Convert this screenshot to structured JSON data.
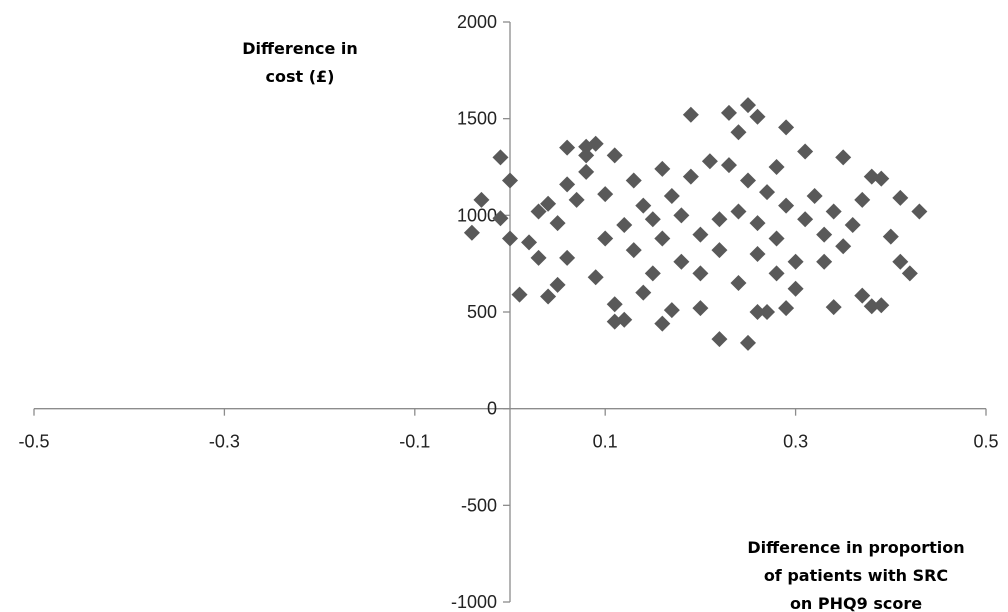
{
  "chart_data": {
    "type": "scatter",
    "xlabel": [
      "Difference in proportion",
      "of patients with SRC",
      "on PHQ9 score"
    ],
    "ylabel": [
      "Difference in",
      "cost (£)"
    ],
    "xlim": [
      -0.5,
      0.5
    ],
    "ylim": [
      -1000,
      2000
    ],
    "x_ticks": [
      "-0.5",
      "-0.3",
      "-0.1",
      "0.1",
      "0.3",
      "0.5"
    ],
    "y_ticks": [
      "2000",
      "1500",
      "1000",
      "500",
      "0",
      "-500",
      "-1000"
    ],
    "marker": "diamond",
    "marker_color": "#595959",
    "grid": false,
    "legend": "none",
    "series": [
      {
        "points": [
          [
            -0.01,
            1300
          ],
          [
            0.0,
            1180
          ],
          [
            -0.03,
            1080
          ],
          [
            -0.04,
            910
          ],
          [
            -0.01,
            985
          ],
          [
            0.0,
            880
          ],
          [
            0.02,
            860
          ],
          [
            0.01,
            590
          ],
          [
            0.04,
            580
          ],
          [
            0.05,
            640
          ],
          [
            0.03,
            1020
          ],
          [
            0.04,
            1060
          ],
          [
            0.06,
            1350
          ],
          [
            0.08,
            1355
          ],
          [
            0.09,
            1370
          ],
          [
            0.08,
            1310
          ],
          [
            0.11,
            1310
          ],
          [
            0.08,
            1225
          ],
          [
            0.1,
            1110
          ],
          [
            0.06,
            1160
          ],
          [
            0.07,
            1080
          ],
          [
            0.05,
            960
          ],
          [
            0.06,
            780
          ],
          [
            0.03,
            780
          ],
          [
            0.09,
            680
          ],
          [
            0.11,
            540
          ],
          [
            0.11,
            450
          ],
          [
            0.12,
            460
          ],
          [
            0.16,
            440
          ],
          [
            0.17,
            510
          ],
          [
            0.19,
            1520
          ],
          [
            0.23,
            1530
          ],
          [
            0.25,
            1570
          ],
          [
            0.26,
            1510
          ],
          [
            0.24,
            1430
          ],
          [
            0.29,
            1455
          ],
          [
            0.31,
            1330
          ],
          [
            0.35,
            1300
          ],
          [
            0.38,
            1200
          ],
          [
            0.39,
            1190
          ],
          [
            0.41,
            1090
          ],
          [
            0.43,
            1020
          ],
          [
            0.4,
            890
          ],
          [
            0.41,
            760
          ],
          [
            0.42,
            700
          ],
          [
            0.39,
            535
          ],
          [
            0.38,
            530
          ],
          [
            0.34,
            525
          ],
          [
            0.37,
            585
          ],
          [
            0.29,
            520
          ],
          [
            0.27,
            500
          ],
          [
            0.26,
            500
          ],
          [
            0.25,
            340
          ],
          [
            0.22,
            360
          ],
          [
            0.2,
            520
          ],
          [
            0.14,
            600
          ],
          [
            0.13,
            820
          ],
          [
            0.15,
            980
          ],
          [
            0.17,
            1100
          ],
          [
            0.19,
            1200
          ],
          [
            0.21,
            1280
          ],
          [
            0.23,
            1260
          ],
          [
            0.25,
            1180
          ],
          [
            0.27,
            1120
          ],
          [
            0.29,
            1050
          ],
          [
            0.31,
            980
          ],
          [
            0.33,
            900
          ],
          [
            0.35,
            840
          ],
          [
            0.3,
            760
          ],
          [
            0.28,
            700
          ],
          [
            0.24,
            650
          ],
          [
            0.2,
            700
          ],
          [
            0.18,
            760
          ],
          [
            0.16,
            880
          ],
          [
            0.2,
            900
          ],
          [
            0.22,
            980
          ],
          [
            0.24,
            1020
          ],
          [
            0.26,
            960
          ],
          [
            0.28,
            880
          ],
          [
            0.26,
            800
          ],
          [
            0.22,
            820
          ],
          [
            0.18,
            1000
          ],
          [
            0.14,
            1050
          ],
          [
            0.12,
            950
          ],
          [
            0.1,
            880
          ],
          [
            0.32,
            1100
          ],
          [
            0.34,
            1020
          ],
          [
            0.36,
            950
          ],
          [
            0.37,
            1080
          ],
          [
            0.33,
            760
          ],
          [
            0.3,
            620
          ],
          [
            0.15,
            700
          ],
          [
            0.13,
            1180
          ],
          [
            0.16,
            1240
          ],
          [
            0.28,
            1250
          ]
        ]
      }
    ]
  }
}
